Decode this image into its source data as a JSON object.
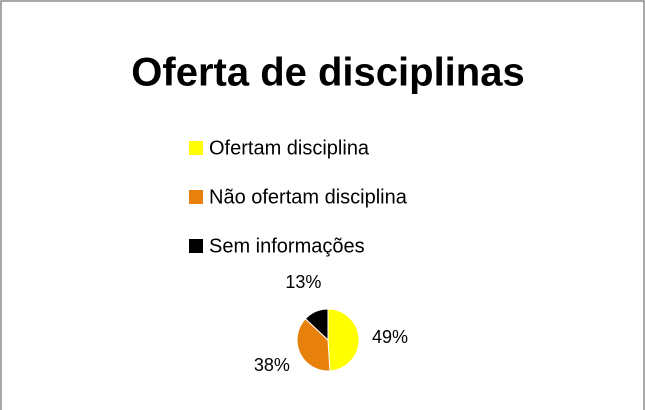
{
  "chart_data": {
    "type": "pie",
    "title": "Oferta de disciplinas",
    "categories": [
      "Ofertam disciplina",
      "Não ofertam disciplina",
      "Sem informações"
    ],
    "values": [
      49,
      38,
      13
    ],
    "value_labels": [
      "49%",
      "38%",
      "13%"
    ],
    "colors": [
      "#ffff00",
      "#e8800c",
      "#000000"
    ]
  }
}
